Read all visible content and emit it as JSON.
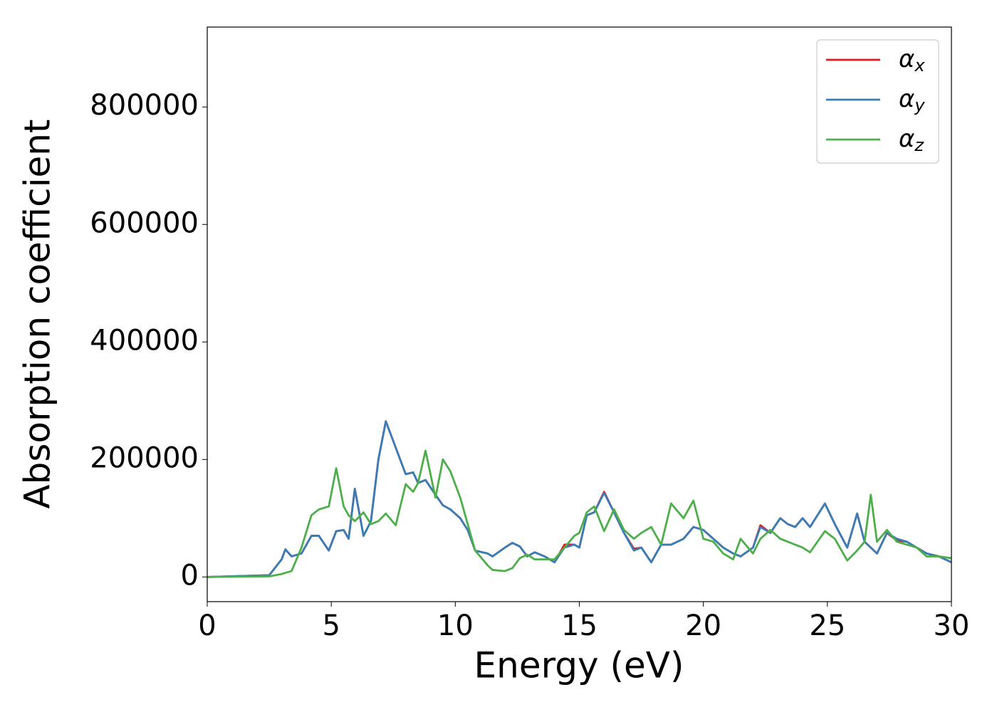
{
  "chart_data": {
    "type": "line",
    "xlabel": "Energy (eV)",
    "ylabel": "Absorption coefficient",
    "x": [
      0,
      2.5,
      3,
      3.15,
      3.4,
      3.8,
      4.2,
      4.5,
      4.9,
      5.2,
      5.5,
      5.7,
      5.95,
      6.3,
      6.6,
      6.9,
      7.2,
      7.6,
      8,
      8.3,
      8.5,
      8.8,
      9.2,
      9.5,
      9.8,
      10.2,
      10.5,
      10.8,
      11.3,
      11.5,
      12,
      12.3,
      12.6,
      12.9,
      13.2,
      13.6,
      14,
      14.4,
      14.8,
      15,
      15.3,
      15.6,
      16,
      16.4,
      16.8,
      17.2,
      17.5,
      17.9,
      18.3,
      18.7,
      19.2,
      19.6,
      20,
      20.4,
      20.8,
      21.2,
      21.5,
      22,
      22.3,
      22.7,
      23.1,
      23.4,
      23.7,
      24,
      24.3,
      24.9,
      25.3,
      25.8,
      26.2,
      26.5,
      26.75,
      27,
      27.4,
      27.8,
      28.2,
      28.6,
      29,
      29.5,
      30
    ],
    "series": [
      {
        "name": "αx",
        "color": "#e41a1c",
        "values": [
          0,
          3000,
          30000,
          47000,
          35000,
          40000,
          70000,
          70000,
          45000,
          78000,
          80000,
          65000,
          150000,
          70000,
          95000,
          200000,
          265000,
          220000,
          175000,
          178000,
          160000,
          165000,
          140000,
          122000,
          115000,
          100000,
          80000,
          45000,
          40000,
          35000,
          50000,
          58000,
          52000,
          35000,
          42000,
          35000,
          25000,
          55000,
          55000,
          50000,
          105000,
          110000,
          145000,
          110000,
          75000,
          48000,
          50000,
          25000,
          55000,
          55000,
          65000,
          85000,
          80000,
          65000,
          50000,
          40000,
          35000,
          50000,
          88000,
          75000,
          100000,
          90000,
          85000,
          100000,
          85000,
          125000,
          90000,
          50000,
          108000,
          60000,
          50000,
          40000,
          75000,
          62000,
          60000,
          50000,
          40000,
          35000,
          25000
        ]
      },
      {
        "name": "αy",
        "color": "#377eb8",
        "values": [
          0,
          3000,
          30000,
          47000,
          35000,
          40000,
          70000,
          70000,
          45000,
          78000,
          80000,
          65000,
          150000,
          70000,
          95000,
          200000,
          265000,
          220000,
          175000,
          178000,
          160000,
          165000,
          140000,
          122000,
          115000,
          100000,
          80000,
          45000,
          40000,
          35000,
          50000,
          58000,
          52000,
          35000,
          42000,
          35000,
          25000,
          50000,
          55000,
          50000,
          105000,
          110000,
          143000,
          110000,
          75000,
          45000,
          50000,
          25000,
          55000,
          55000,
          65000,
          85000,
          80000,
          65000,
          50000,
          40000,
          35000,
          50000,
          85000,
          75000,
          100000,
          90000,
          85000,
          100000,
          85000,
          125000,
          90000,
          50000,
          108000,
          60000,
          50000,
          40000,
          75000,
          65000,
          60000,
          50000,
          40000,
          35000,
          25000
        ]
      },
      {
        "name": "αz",
        "color": "#4daf4a",
        "values": [
          0,
          1000,
          5000,
          7000,
          10000,
          50000,
          105000,
          115000,
          120000,
          185000,
          120000,
          105000,
          95000,
          110000,
          90000,
          95000,
          108000,
          88000,
          158000,
          145000,
          160000,
          215000,
          135000,
          200000,
          180000,
          135000,
          90000,
          45000,
          20000,
          12000,
          10000,
          15000,
          32000,
          38000,
          30000,
          30000,
          30000,
          50000,
          70000,
          75000,
          110000,
          120000,
          78000,
          115000,
          80000,
          65000,
          75000,
          85000,
          55000,
          125000,
          100000,
          130000,
          65000,
          60000,
          40000,
          30000,
          65000,
          40000,
          65000,
          80000,
          65000,
          60000,
          55000,
          50000,
          42000,
          78000,
          65000,
          28000,
          45000,
          60000,
          140000,
          60000,
          80000,
          60000,
          55000,
          50000,
          35000,
          35000,
          32000
        ]
      }
    ],
    "xlim": [
      0,
      30
    ],
    "xticks": [
      0,
      5,
      10,
      15,
      20,
      25,
      30
    ],
    "ylim": [
      -42000,
      936000
    ],
    "yticks": [
      0,
      200000,
      400000,
      600000,
      800000
    ],
    "grid": false,
    "legend": "upper right"
  }
}
